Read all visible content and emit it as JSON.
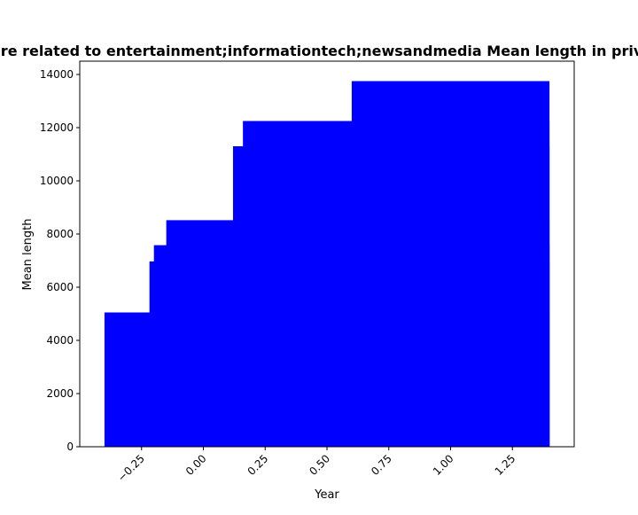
{
  "chart_data": {
    "type": "bar",
    "title": "Genre related to entertainment;informationtech;newsandmedia Mean length in private",
    "xlabel": "Year",
    "ylabel": "Mean length",
    "xlim": [
      -0.5,
      1.5
    ],
    "ylim": [
      0,
      14500
    ],
    "x_ticks": [
      -0.25,
      0.0,
      0.25,
      0.5,
      0.75,
      1.0,
      1.25
    ],
    "x_tick_labels": [
      "−0.25",
      "0.00",
      "0.25",
      "0.50",
      "0.75",
      "1.00",
      "1.25"
    ],
    "y_ticks": [
      0,
      2000,
      4000,
      6000,
      8000,
      10000,
      12000,
      14000
    ],
    "y_tick_labels": [
      "0",
      "2000",
      "4000",
      "6000",
      "8000",
      "10000",
      "12000",
      "14000"
    ],
    "bars": [
      {
        "x0": -0.4,
        "x1": 1.4,
        "value": 5050
      },
      {
        "x0": -0.218,
        "x1": 1.4,
        "value": 6970
      },
      {
        "x0": -0.2,
        "x1": 1.4,
        "value": 7580
      },
      {
        "x0": -0.15,
        "x1": 1.4,
        "value": 8520
      },
      {
        "x0": 0.12,
        "x1": 1.4,
        "value": 11300
      },
      {
        "x0": 0.16,
        "x1": 1.4,
        "value": 12250
      },
      {
        "x0": 0.6,
        "x1": 1.4,
        "value": 13750
      }
    ],
    "color": "#0000ff",
    "grid": false,
    "legend": "none"
  }
}
